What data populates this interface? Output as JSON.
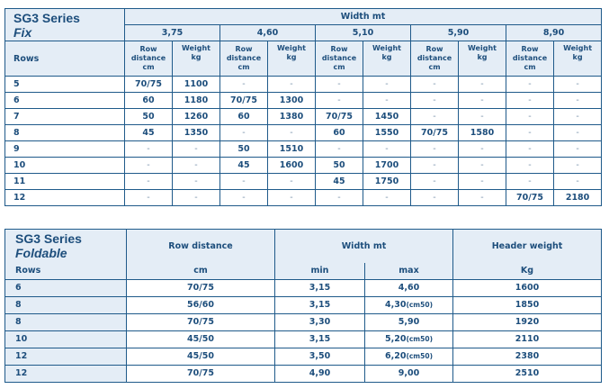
{
  "fix": {
    "title": "SG3 Series",
    "subtitle": "Fix",
    "width_label": "Width mt",
    "rows_label": "Rows",
    "widths": [
      "3,75",
      "4,60",
      "5,10",
      "5,90",
      "8,90"
    ],
    "row_distance": [
      "Row",
      "distance",
      "cm"
    ],
    "weight": [
      "Weight",
      "kg"
    ],
    "rows": [
      {
        "rows": "5",
        "cells": [
          "70/75",
          "1100",
          "-",
          "-",
          "-",
          "-",
          "-",
          "-",
          "-",
          "-"
        ]
      },
      {
        "rows": "6",
        "cells": [
          "60",
          "1180",
          "70/75",
          "1300",
          "-",
          "-",
          "-",
          "-",
          "-",
          "-"
        ]
      },
      {
        "rows": "7",
        "cells": [
          "50",
          "1260",
          "60",
          "1380",
          "70/75",
          "1450",
          "-",
          "-",
          "-",
          "-"
        ]
      },
      {
        "rows": "8",
        "cells": [
          "45",
          "1350",
          "-",
          "-",
          "60",
          "1550",
          "70/75",
          "1580",
          "-",
          "-"
        ]
      },
      {
        "rows": "9",
        "cells": [
          "-",
          "-",
          "50",
          "1510",
          "-",
          "-",
          "-",
          "-",
          "-",
          "-"
        ]
      },
      {
        "rows": "10",
        "cells": [
          "-",
          "-",
          "45",
          "1600",
          "50",
          "1700",
          "-",
          "-",
          "-",
          "-"
        ]
      },
      {
        "rows": "11",
        "cells": [
          "-",
          "-",
          "-",
          "-",
          "45",
          "1750",
          "-",
          "-",
          "-",
          "-"
        ]
      },
      {
        "rows": "12",
        "cells": [
          "-",
          "-",
          "-",
          "-",
          "-",
          "-",
          "-",
          "-",
          "70/75",
          "2180"
        ]
      }
    ]
  },
  "foldable": {
    "title": "SG3 Series",
    "subtitle": "Foldable",
    "rows_label": "Rows",
    "row_distance": "Row distance",
    "row_distance_unit": "cm",
    "width_label": "Width mt",
    "min": "min",
    "max": "max",
    "header_weight": "Header weight",
    "header_weight_unit": "Kg",
    "rows": [
      {
        "rows": "6",
        "dist": "70/75",
        "min": "3,15",
        "max": "4,60",
        "note": "",
        "kg": "1600"
      },
      {
        "rows": "8",
        "dist": "56/60",
        "min": "3,15",
        "max": "4,30",
        "note": "(cm50)",
        "kg": "1850"
      },
      {
        "rows": "8",
        "dist": "70/75",
        "min": "3,30",
        "max": "5,90",
        "note": "",
        "kg": "1920"
      },
      {
        "rows": "10",
        "dist": "45/50",
        "min": "3,15",
        "max": "5,20",
        "note": "(cm50)",
        "kg": "2110"
      },
      {
        "rows": "12",
        "dist": "45/50",
        "min": "3,50",
        "max": "6,20",
        "note": "(cm50)",
        "kg": "2380"
      },
      {
        "rows": "12",
        "dist": "70/75",
        "min": "4,90",
        "max": "9,00",
        "note": "",
        "kg": "2510"
      }
    ]
  }
}
